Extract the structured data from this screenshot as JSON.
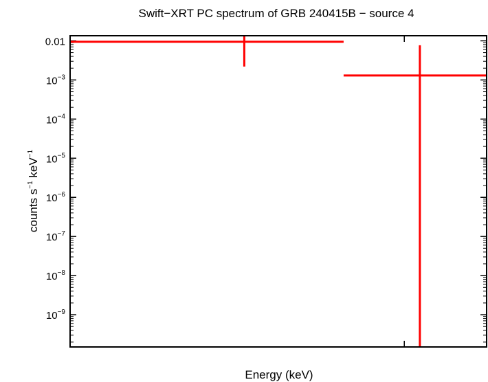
{
  "chart_data": {
    "type": "scatter",
    "title": "Swift−XRT PC spectrum of GRB 240415B − source 4",
    "xlabel": "Energy (keV)",
    "ylabel_main": "counts s",
    "ylabel_exp1": "−1",
    "ylabel_mid": " keV",
    "ylabel_exp2": "−1",
    "x_scale": "log",
    "y_scale": "log",
    "xlim": [
      0.3,
      10
    ],
    "ylim": [
      1.5e-10,
      0.0135
    ],
    "y_ticks": [
      {
        "value": 0.01,
        "label": "0.01",
        "base": "",
        "exp": ""
      },
      {
        "value": 0.001,
        "label": "",
        "base": "10",
        "exp": "−3"
      },
      {
        "value": 0.0001,
        "label": "",
        "base": "10",
        "exp": "−4"
      },
      {
        "value": 1e-05,
        "label": "",
        "base": "10",
        "exp": "−5"
      },
      {
        "value": 1e-06,
        "label": "",
        "base": "10",
        "exp": "−6"
      },
      {
        "value": 1e-07,
        "label": "",
        "base": "10",
        "exp": "−7"
      },
      {
        "value": 1e-08,
        "label": "",
        "base": "10",
        "exp": "−8"
      },
      {
        "value": 1e-09,
        "label": "",
        "base": "10",
        "exp": "−9"
      }
    ],
    "x_major_ticks": [
      5
    ],
    "series": [
      {
        "color": "#ff0000",
        "points": [
          {
            "x": 1.3,
            "xlo": 0.3,
            "xhi": 3.0,
            "y": 0.0095,
            "ylo": 0.0022,
            "yhi": 0.0135
          },
          {
            "x": 5.7,
            "xlo": 3.0,
            "xhi": 10,
            "y": 0.0013,
            "ylo": 1.5e-10,
            "yhi": 0.0077
          }
        ]
      }
    ],
    "grid": false,
    "legend": "none"
  }
}
